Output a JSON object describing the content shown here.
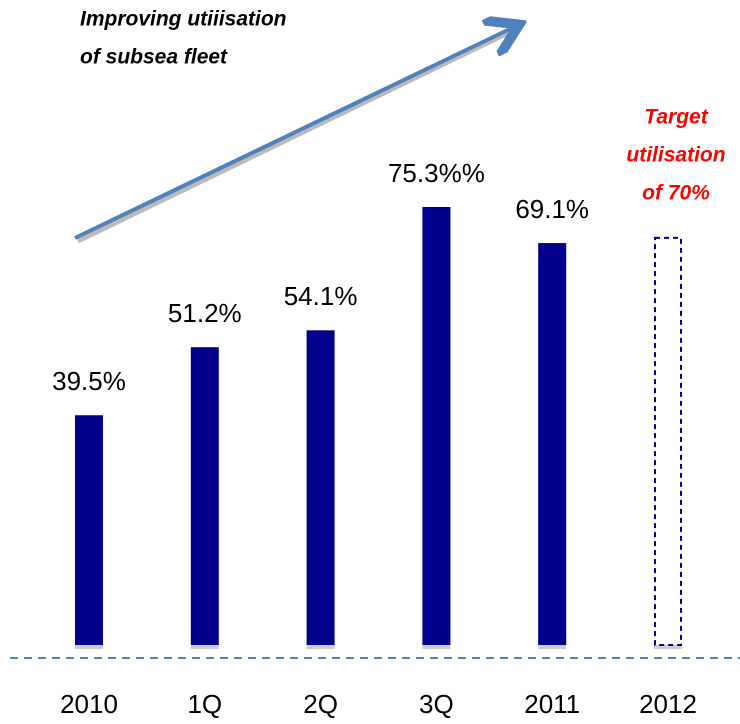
{
  "chart_data": {
    "type": "bar",
    "categories": [
      "2010",
      "1Q",
      "2Q",
      "3Q",
      "2011",
      "2012"
    ],
    "values": [
      39.5,
      51.2,
      54.1,
      75.3,
      69.1,
      70
    ],
    "value_labels": [
      "39.5%",
      "51.2%",
      "54.1%",
      "75.3%%",
      "69.1%",
      null
    ],
    "bar_styles": [
      "solid",
      "solid",
      "solid",
      "solid",
      "solid",
      "dashed"
    ],
    "color": "#00008b",
    "annotations": [
      {
        "lines": [
          "Improving utiiisation",
          "of subsea fleet"
        ],
        "color": "#000000"
      },
      {
        "lines": [
          "Target",
          "utilisation",
          "of 70%"
        ],
        "color": "#ff0000"
      }
    ]
  }
}
